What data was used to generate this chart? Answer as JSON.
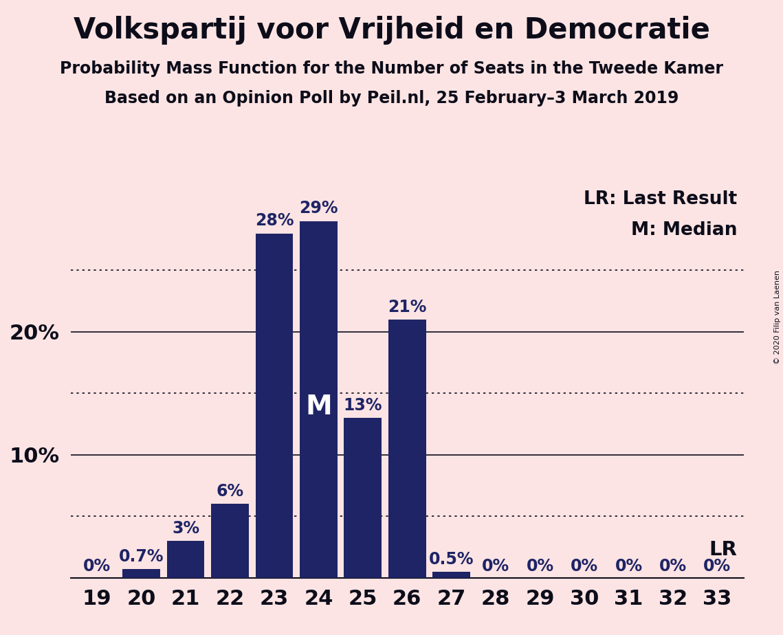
{
  "title": "Volkspartij voor Vrijheid en Democratie",
  "subtitle1": "Probability Mass Function for the Number of Seats in the Tweede Kamer",
  "subtitle2": "Based on an Opinion Poll by Peil.nl, 25 February–3 March 2019",
  "copyright": "© 2020 Filip van Laenen",
  "categories": [
    19,
    20,
    21,
    22,
    23,
    24,
    25,
    26,
    27,
    28,
    29,
    30,
    31,
    32,
    33
  ],
  "values": [
    0.0,
    0.7,
    3.0,
    6.0,
    28.0,
    29.0,
    13.0,
    21.0,
    0.5,
    0.0,
    0.0,
    0.0,
    0.0,
    0.0,
    0.0
  ],
  "labels": [
    "0%",
    "0.7%",
    "3%",
    "6%",
    "28%",
    "29%",
    "13%",
    "21%",
    "0.5%",
    "0%",
    "0%",
    "0%",
    "0%",
    "0%",
    "0%"
  ],
  "bar_color": "#1e2465",
  "background_color": "#fce4e4",
  "median_seat": 24,
  "last_result_seat": 33,
  "dotted_lines": [
    5,
    15,
    25
  ],
  "solid_lines": [
    10,
    20
  ],
  "legend_lr": "LR: Last Result",
  "legend_m": "M: Median",
  "lr_label": "LR",
  "m_label": "M",
  "title_fontsize": 30,
  "subtitle_fontsize": 17,
  "axis_fontsize": 22,
  "bar_label_fontsize": 17,
  "legend_fontsize": 19,
  "ymax": 32
}
